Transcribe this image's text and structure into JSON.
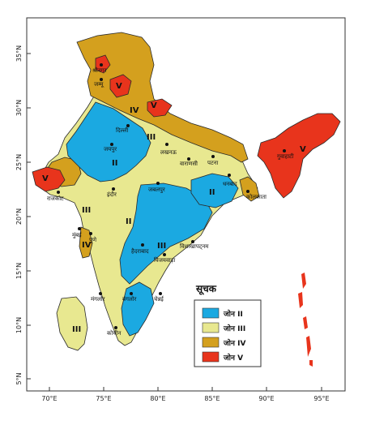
{
  "map": {
    "lat_labels": [
      "5°N",
      "10°N",
      "15°N",
      "20°N",
      "25°N",
      "30°N",
      "35°N"
    ],
    "lon_labels": [
      "70°E",
      "75°E",
      "80°E",
      "85°E",
      "90°E",
      "95°E"
    ],
    "colors": {
      "zone2": "#1ba9e1",
      "zone3": "#e8e890",
      "zone4": "#d4a01e",
      "zone5": "#e8341c",
      "border": "#2a2a2a"
    },
    "zone_labels": {
      "ii_north": "II",
      "ii_central": "II",
      "ii_east": "II",
      "iii_upper": "III",
      "iii_west": "III",
      "iii_east": "III",
      "iii_sri": "III",
      "iv_north": "IV",
      "iv_west": "IV",
      "v_kashmir": "V",
      "v_himachal": "V",
      "v_kutch": "V",
      "v_ne": "V"
    },
    "cities": {
      "srinagar": "श्रीनगर",
      "jammu": "जम्मू",
      "delhi": "दिल्ली",
      "jaipur": "जयपुर",
      "lucknow": "लखनऊ",
      "varanasi": "वाराणसी",
      "patna": "पटना",
      "guwahati": "गुवाहाटी",
      "rajkot": "राजकोट",
      "indore": "इंदौर",
      "jabalpur": "जबलपुर",
      "dhanbad": "धनबाद",
      "kolkata": "कोलकाता",
      "mumbai": "मुंबई",
      "pune": "पुणे",
      "hyderabad": "हैदराबाद",
      "visakhapatnam": "विशाखापट्नम",
      "vijayawada": "विजयवाड़ा",
      "mangalore": "मंगलोर",
      "bangalore": "बंगलोर",
      "chennai": "चेन्नई",
      "kochi": "कोचीन"
    },
    "legend": {
      "title": "सूचक",
      "items": [
        {
          "label": "जोन II",
          "color": "#1ba9e1"
        },
        {
          "label": "जोन III",
          "color": "#e8e890"
        },
        {
          "label": "जोन IV",
          "color": "#d4a01e"
        },
        {
          "label": "जोन V",
          "color": "#e8341c"
        }
      ]
    }
  }
}
